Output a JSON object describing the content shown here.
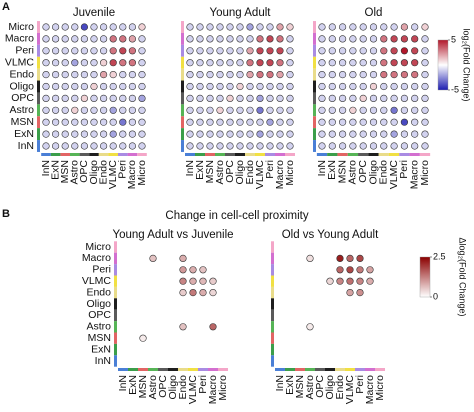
{
  "panels": [
    {
      "label": "A",
      "colorbar": {
        "label": "log₂(Fold Change)",
        "lim": [
          -5,
          5
        ],
        "ticks": [
          5,
          -5
        ],
        "colors": [
          "#1c1cb0",
          "#ffffff",
          "#b2182b"
        ]
      }
    },
    {
      "label": "B",
      "title": "Change in cell-cell proximity",
      "colorbar": {
        "label": "Δlog₂(Fold Change)",
        "lim": [
          0,
          2.5
        ],
        "ticks": [
          2.5,
          0
        ],
        "colors": [
          "#ffffff",
          "#8b0000"
        ]
      }
    }
  ],
  "cell_type_colors": {
    "Micro": "#f4a6c8",
    "Macro": "#d36fd0",
    "Peri": "#a98be3",
    "VLMC": "#f1e043",
    "Endo": "#e9dc8a",
    "Oligo": "#1e1e1e",
    "OPC": "#5a5a5a",
    "Astro": "#56b456",
    "MSN": "#e26464",
    "ExN": "#3b9e4a",
    "InN": "#4a7fd6"
  },
  "chart_data": [
    {
      "type": "dotmatrix",
      "title": "Juvenile",
      "rows": [
        "Micro",
        "Macro",
        "Peri",
        "VLMC",
        "Endo",
        "Oligo",
        "OPC",
        "Astro",
        "MSN",
        "ExN",
        "InN"
      ],
      "columns": [
        "InN",
        "ExN",
        "MSN",
        "Astro",
        "OPC",
        "Oligo",
        "Endo",
        "VLMC",
        "Peri",
        "Macro",
        "Micro"
      ],
      "values": [
        [
          -1,
          -1,
          -1,
          -1,
          -4,
          -1,
          -1,
          -1,
          -1,
          -1,
          1
        ],
        [
          -1,
          -1,
          -1,
          -1,
          -1,
          -1,
          -1,
          3,
          3,
          2,
          -1
        ],
        [
          -1,
          -1,
          -1,
          -1,
          -1,
          -1,
          -1,
          3,
          4,
          3,
          -1
        ],
        [
          -1,
          -1,
          -1,
          -2,
          -1,
          -1,
          1,
          4,
          3,
          3,
          -1
        ],
        [
          -1,
          -1,
          -1,
          -1,
          -1,
          -1,
          2,
          1,
          -1,
          -1,
          -1
        ],
        [
          -1,
          -1,
          -1,
          -1,
          -1,
          1,
          -1,
          -1,
          -1,
          -1,
          -1
        ],
        [
          -1,
          -1,
          -1,
          -1,
          1,
          -1,
          -1,
          -1,
          -1,
          -1,
          -2
        ],
        [
          -1,
          -1,
          -1,
          1,
          -1,
          -1,
          -1,
          -2,
          -1,
          -1,
          -1
        ],
        [
          -1,
          -1,
          -1,
          -1,
          -1,
          -1,
          -1,
          -1,
          -3,
          -1,
          -1
        ],
        [
          -1,
          -1,
          -1,
          -1,
          -1,
          -1,
          -1,
          -2,
          -1,
          -1,
          -1
        ],
        [
          -1,
          -1,
          -1,
          -1,
          -1,
          -1,
          -1,
          -1,
          -1,
          -1,
          -1
        ]
      ]
    },
    {
      "type": "dotmatrix",
      "title": "Young Adult",
      "columns": [
        "InN",
        "ExN",
        "MSN",
        "Astro",
        "OPC",
        "Oligo",
        "Endo",
        "VLMC",
        "Peri",
        "Macro",
        "Micro"
      ],
      "values": [
        [
          -1,
          -1,
          -1,
          -1,
          -1,
          -1,
          -2,
          -1,
          -1,
          2,
          1
        ],
        [
          -1,
          -1,
          -1,
          -1,
          -1,
          -1,
          -1,
          3,
          4,
          3,
          -1
        ],
        [
          -1,
          -1,
          -1,
          -1,
          -1,
          -1,
          2,
          4,
          4,
          4,
          -1
        ],
        [
          -1,
          -1,
          -1,
          -1,
          -1,
          -1,
          3,
          4,
          4,
          3,
          -1
        ],
        [
          -1,
          -1,
          -1,
          -1,
          -1,
          -1,
          2,
          3,
          3,
          2,
          -1
        ],
        [
          -1,
          -1,
          -1,
          -1,
          -1,
          1,
          -1,
          -1,
          -1,
          -1,
          -1
        ],
        [
          -1,
          -1,
          -1,
          -1,
          1,
          -1,
          -1,
          -2,
          -1,
          -1,
          -1
        ],
        [
          -1,
          -1,
          -1,
          1,
          -1,
          -1,
          -1,
          -3,
          -1,
          -1,
          -1
        ],
        [
          -1,
          -1,
          -1,
          -1,
          -1,
          -1,
          -1,
          -1,
          -2,
          -1,
          -1
        ],
        [
          -1,
          -1,
          -1,
          -1,
          -1,
          -1,
          -1,
          -2,
          -1,
          -1,
          -1
        ],
        [
          -1,
          -1,
          -1,
          -1,
          -1,
          -1,
          -1,
          -1,
          -1,
          -1,
          -1
        ]
      ]
    },
    {
      "type": "dotmatrix",
      "title": "Old",
      "columns": [
        "InN",
        "ExN",
        "MSN",
        "Astro",
        "OPC",
        "Oligo",
        "Endo",
        "VLMC",
        "Peri",
        "Macro",
        "Micro"
      ],
      "values": [
        [
          -1,
          -1,
          -1,
          -1,
          -1,
          -1,
          -1,
          -1,
          2,
          -1,
          1
        ],
        [
          -1,
          -1,
          -1,
          -1,
          -1,
          -1,
          3,
          4,
          4,
          4,
          -1
        ],
        [
          -1,
          -1,
          -1,
          -1,
          -1,
          -1,
          3,
          4,
          5,
          4,
          -1
        ],
        [
          -1,
          -1,
          -1,
          -1,
          -1,
          -1,
          3,
          4,
          4,
          4,
          -1
        ],
        [
          -1,
          -1,
          -1,
          -1,
          -1,
          -1,
          3,
          3,
          3,
          3,
          -1
        ],
        [
          -1,
          -1,
          -1,
          -1,
          -1,
          1,
          -1,
          -1,
          -1,
          -1,
          -1
        ],
        [
          -1,
          -1,
          -1,
          -1,
          1,
          -1,
          -1,
          -1,
          -1,
          -1,
          -1
        ],
        [
          -1,
          -1,
          -1,
          1,
          -1,
          -1,
          -1,
          -3,
          -1,
          -1,
          -1
        ],
        [
          -1,
          -1,
          -1,
          -1,
          -1,
          -1,
          -1,
          -1,
          -4,
          -1,
          -1
        ],
        [
          -1,
          -1,
          -1,
          -1,
          -1,
          -1,
          -1,
          -2,
          -1,
          -1,
          -1
        ],
        [
          -1,
          -1,
          -1,
          -1,
          -1,
          -1,
          -1,
          -1,
          -1,
          -1,
          -1
        ]
      ]
    },
    {
      "type": "dotmatrix",
      "title": "Young Adult vs Juvenile",
      "rows": [
        "Micro",
        "Macro",
        "Peri",
        "VLMC",
        "Endo",
        "Oligo",
        "OPC",
        "Astro",
        "MSN",
        "ExN",
        "InN"
      ],
      "columns": [
        "InN",
        "ExN",
        "MSN",
        "Astro",
        "OPC",
        "Oligo",
        "Endo",
        "VLMC",
        "Peri",
        "Macro",
        "Micro"
      ],
      "values": [
        [
          null,
          null,
          null,
          null,
          null,
          null,
          null,
          null,
          null,
          null,
          null
        ],
        [
          null,
          null,
          null,
          0.6,
          null,
          null,
          0.8,
          null,
          null,
          null,
          null
        ],
        [
          null,
          null,
          null,
          null,
          null,
          null,
          1,
          0.8,
          0.6,
          null,
          null
        ],
        [
          null,
          null,
          null,
          null,
          null,
          null,
          1.2,
          0.8,
          0.7,
          0.5,
          null
        ],
        [
          null,
          null,
          null,
          null,
          null,
          null,
          0.5,
          1.3,
          0.8,
          0.4,
          null
        ],
        [
          null,
          null,
          null,
          null,
          null,
          null,
          null,
          null,
          null,
          null,
          null
        ],
        [
          null,
          null,
          null,
          null,
          null,
          null,
          null,
          null,
          null,
          null,
          null
        ],
        [
          null,
          null,
          null,
          null,
          null,
          null,
          0.6,
          null,
          null,
          1.5,
          null
        ],
        [
          null,
          null,
          0.2,
          null,
          null,
          null,
          null,
          null,
          null,
          null,
          null
        ],
        [
          null,
          null,
          null,
          null,
          null,
          null,
          null,
          null,
          null,
          null,
          null
        ],
        [
          null,
          null,
          null,
          null,
          null,
          null,
          null,
          null,
          null,
          null,
          null
        ]
      ]
    },
    {
      "type": "dotmatrix",
      "title": "Old vs Young Adult",
      "columns": [
        "InN",
        "ExN",
        "MSN",
        "Astro",
        "OPC",
        "Oligo",
        "Endo",
        "VLMC",
        "Peri",
        "Macro",
        "Micro"
      ],
      "values": [
        [
          null,
          null,
          null,
          null,
          null,
          null,
          null,
          null,
          null,
          null,
          null
        ],
        [
          null,
          null,
          null,
          0.3,
          null,
          null,
          2.2,
          1.5,
          1.8,
          null,
          null
        ],
        [
          null,
          null,
          null,
          null,
          null,
          null,
          1.5,
          1.8,
          1.3,
          0.9,
          null
        ],
        [
          null,
          null,
          null,
          null,
          null,
          0.4,
          1.2,
          1.4,
          1.2,
          0.8,
          null
        ],
        [
          null,
          null,
          null,
          null,
          null,
          null,
          null,
          0.9,
          1.1,
          null,
          null
        ],
        [
          null,
          null,
          null,
          null,
          null,
          null,
          null,
          null,
          null,
          null,
          null
        ],
        [
          null,
          null,
          null,
          null,
          null,
          null,
          null,
          null,
          null,
          null,
          null
        ],
        [
          null,
          null,
          null,
          0.2,
          null,
          null,
          null,
          null,
          null,
          null,
          null
        ],
        [
          null,
          null,
          null,
          null,
          null,
          null,
          null,
          null,
          null,
          null,
          null
        ],
        [
          null,
          null,
          null,
          null,
          null,
          null,
          null,
          null,
          null,
          null,
          null
        ],
        [
          null,
          null,
          null,
          null,
          null,
          null,
          null,
          null,
          null,
          null,
          null
        ]
      ]
    }
  ]
}
